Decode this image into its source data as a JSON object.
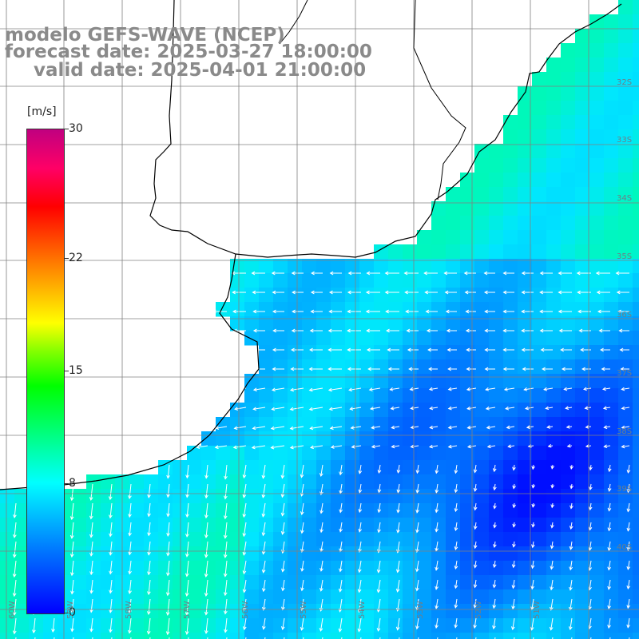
{
  "title": {
    "line1": "modelo GEFS-WAVE (NCEP)",
    "line2": "forecast date: 2025-03-27 18:00:00",
    "line3": "valid date: 2025-04-01 21:00:00"
  },
  "colorbar": {
    "unit": "[m/s]",
    "ticks": [
      "30",
      "22",
      "15",
      "8",
      "0"
    ],
    "tick_values": [
      30,
      22,
      15,
      8,
      0
    ],
    "min": 0,
    "max": 30,
    "colors": [
      "#0000ff",
      "#0080ff",
      "#00ffff",
      "#00ff80",
      "#00ff00",
      "#ffff00",
      "#ff8000",
      "#ff0000",
      "#c00080"
    ]
  },
  "axes": {
    "lat_labels": [
      "32S",
      "33S",
      "34S",
      "35S",
      "36S",
      "37S",
      "38S",
      "39S",
      "40S"
    ],
    "lon_labels": [
      "60W",
      "59W",
      "58W",
      "57W",
      "56W",
      "55W",
      "54W",
      "53W",
      "52W",
      "51W"
    ]
  },
  "field": {
    "land_color": "#ffffff",
    "arrow_color": "#ffffff",
    "grid_color": "#808080",
    "coast_color": "#000000"
  }
}
